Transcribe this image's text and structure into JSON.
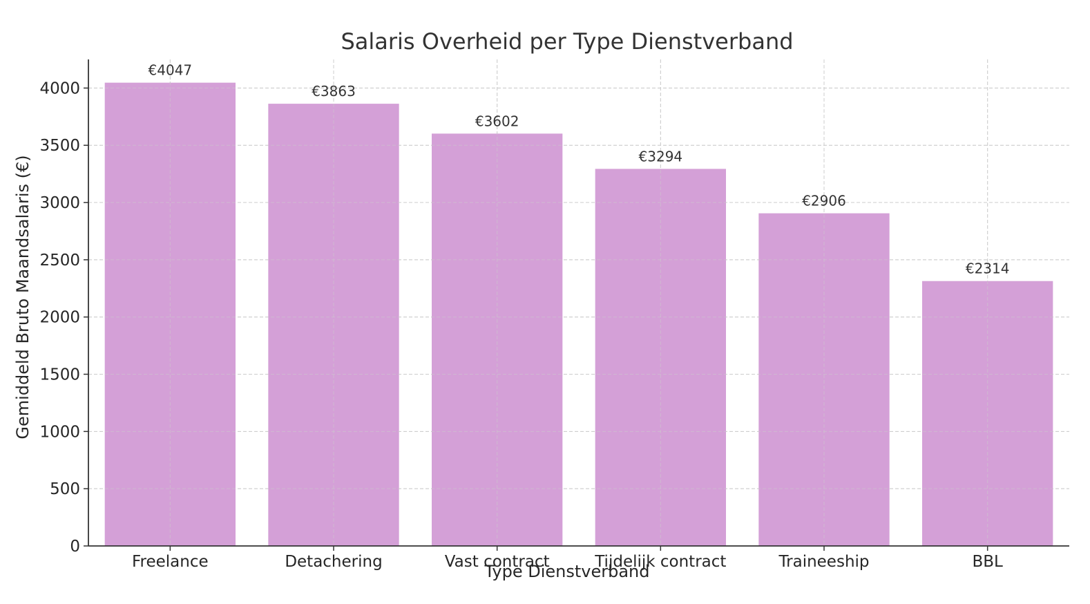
{
  "chart_data": {
    "type": "bar",
    "title": "Salaris Overheid per Type Dienstverband",
    "xlabel": "Type Dienstverband",
    "ylabel": "Gemiddeld Bruto Maandsalaris (€)",
    "categories": [
      "Freelance",
      "Detachering",
      "Vast contract",
      "Tijdelijk contract",
      "Traineeship",
      "BBL"
    ],
    "values": [
      4047,
      3863,
      3602,
      3294,
      2906,
      2314
    ],
    "data_labels": [
      "€4047",
      "€3863",
      "€3602",
      "€3294",
      "€2906",
      "€2314"
    ],
    "ylim": [
      0,
      4250
    ],
    "yticks": [
      0,
      500,
      1000,
      1500,
      2000,
      2500,
      3000,
      3500,
      4000
    ],
    "grid": true,
    "bar_color": "#d4a0d7"
  }
}
